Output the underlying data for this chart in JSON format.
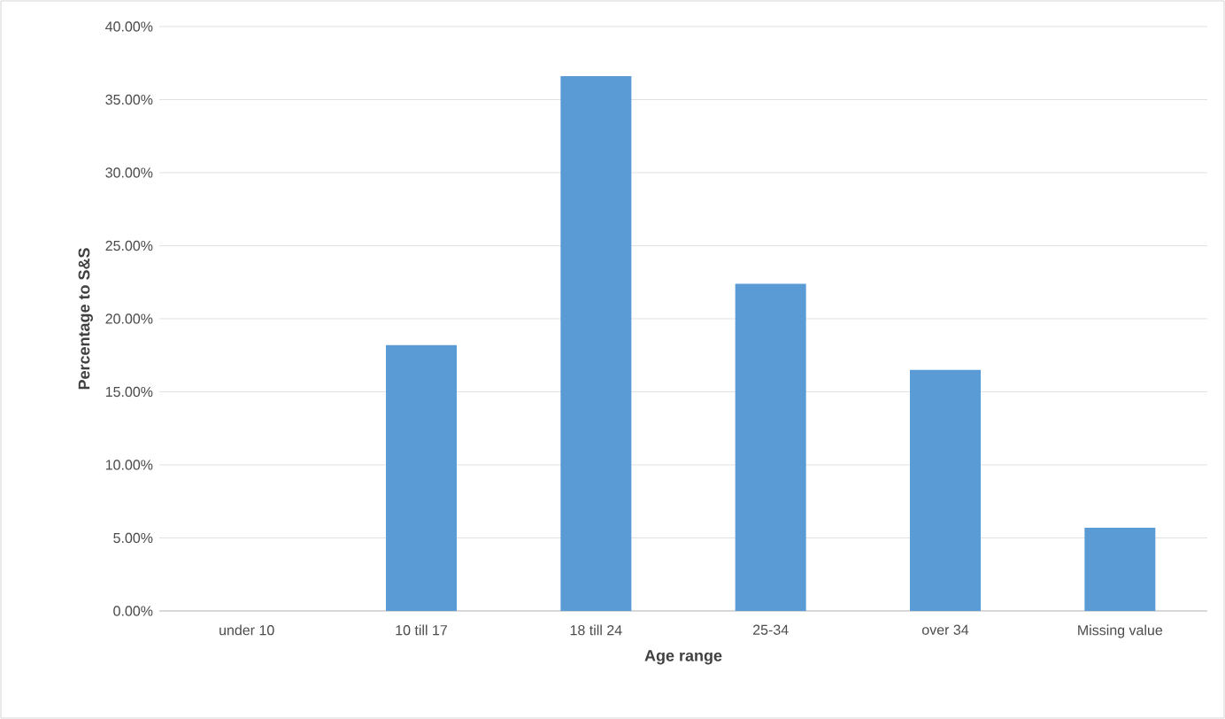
{
  "chart_data": {
    "type": "bar",
    "xlabel": "Age range",
    "ylabel": "Percentage to  S&S",
    "categories": [
      "under 10",
      "10 till 17",
      "18 till 24",
      "25-34",
      "over 34",
      "Missing value"
    ],
    "values": [
      0,
      18.2,
      36.6,
      22.4,
      16.5,
      5.7
    ],
    "color": "#5b9bd5",
    "ylim": [
      0,
      40
    ],
    "yticks": [
      {
        "value": 0,
        "label": "0.00%"
      },
      {
        "value": 5,
        "label": "5.00%"
      },
      {
        "value": 10,
        "label": "10.00%"
      },
      {
        "value": 15,
        "label": "15.00%"
      },
      {
        "value": 20,
        "label": "20.00%"
      },
      {
        "value": 25,
        "label": "25.00%"
      },
      {
        "value": 30,
        "label": "30.00%"
      },
      {
        "value": 35,
        "label": "35.00%"
      },
      {
        "value": 40,
        "label": "40.00%"
      }
    ],
    "grid": "y"
  }
}
